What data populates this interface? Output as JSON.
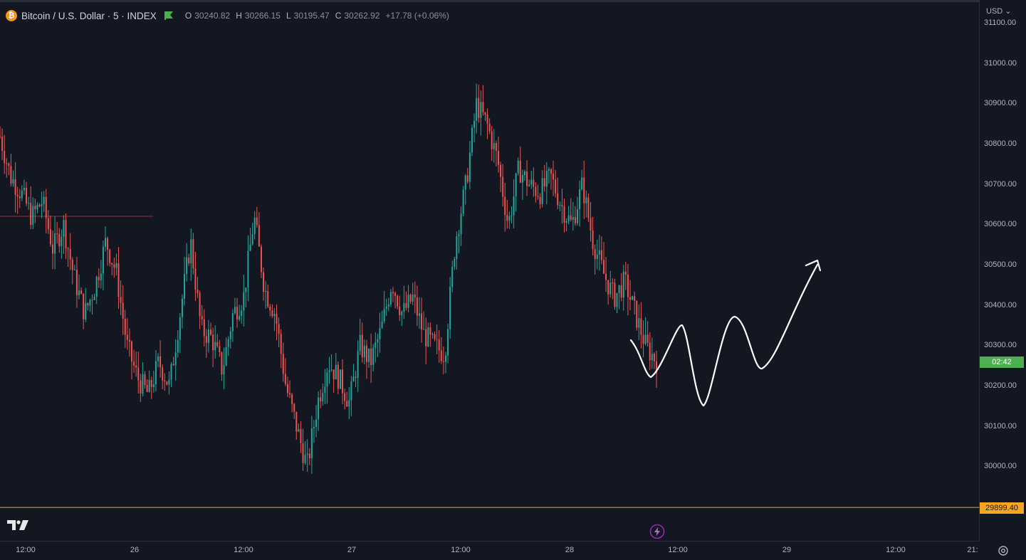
{
  "header": {
    "symbol": "Bitcoin / U.S. Dollar · 5 · INDEX",
    "coin_glyph": "₿",
    "ohlc": [
      {
        "key": "O",
        "value": "30240.82"
      },
      {
        "key": "H",
        "value": "30266.15"
      },
      {
        "key": "L",
        "value": "30195.47"
      },
      {
        "key": "C",
        "value": "30262.92"
      }
    ],
    "change": "+17.78 (+0.06%)"
  },
  "price_scale": {
    "currency": "USD",
    "labels": [
      "31100.00",
      "31000.00",
      "30900.00",
      "30800.00",
      "30700.00",
      "30600.00",
      "30500.00",
      "30400.00",
      "30300.00",
      "30200.00",
      "30100.00",
      "30000.00"
    ],
    "countdown": "02:42",
    "level_label": "29899.40"
  },
  "time_axis": {
    "labels": [
      "12:00",
      "26",
      "12:00",
      "27",
      "12:00",
      "28",
      "12:00",
      "29",
      "12:00",
      "21:"
    ]
  },
  "colors": {
    "background": "#131722",
    "up": "#26a69a",
    "down": "#ef5350",
    "level_line": "#f5a623",
    "countdown_badge": "#4caf50",
    "drawing": "#ffffff"
  },
  "icons": {
    "coin": "bitcoin-icon",
    "flag": "green-flag-icon",
    "logo": "tradingview-logo",
    "bolt": "lightning-icon",
    "settings": "settings-gear-icon"
  },
  "chart_data": {
    "type": "candlestick",
    "interval": "5",
    "ylim": [
      29800,
      31150
    ],
    "price_line": 29899.4,
    "x_ticks": [
      "12:00",
      "26",
      "12:00",
      "27",
      "12:00",
      "28",
      "12:00",
      "29",
      "12:00",
      "21:"
    ],
    "y_ticks": [
      30000,
      30100,
      30200,
      30300,
      30400,
      30500,
      30600,
      30700,
      30800,
      30900,
      31000,
      31100
    ],
    "series": [
      {
        "values": [
          30820,
          30720,
          30680,
          30620,
          30660,
          30540,
          30600,
          30470,
          30380,
          30450,
          30560,
          30480,
          30300,
          30220,
          30180,
          30260,
          30200,
          30380,
          30560,
          30340,
          30320,
          30240,
          30380,
          30420,
          30620,
          30440,
          30380,
          30200,
          30100,
          30000,
          30160,
          30260,
          30220,
          30160,
          30300,
          30260,
          30340,
          30460,
          30380,
          30420,
          30330,
          30300,
          30280,
          30560,
          30700,
          30900,
          30850,
          30760,
          30600,
          30740,
          30700,
          30680,
          30720,
          30650,
          30600,
          30700,
          30560,
          30480,
          30420,
          30460,
          30380,
          30300,
          30262
        ]
      }
    ],
    "drawing": {
      "type": "projected-path",
      "color": "#ffffff"
    }
  }
}
